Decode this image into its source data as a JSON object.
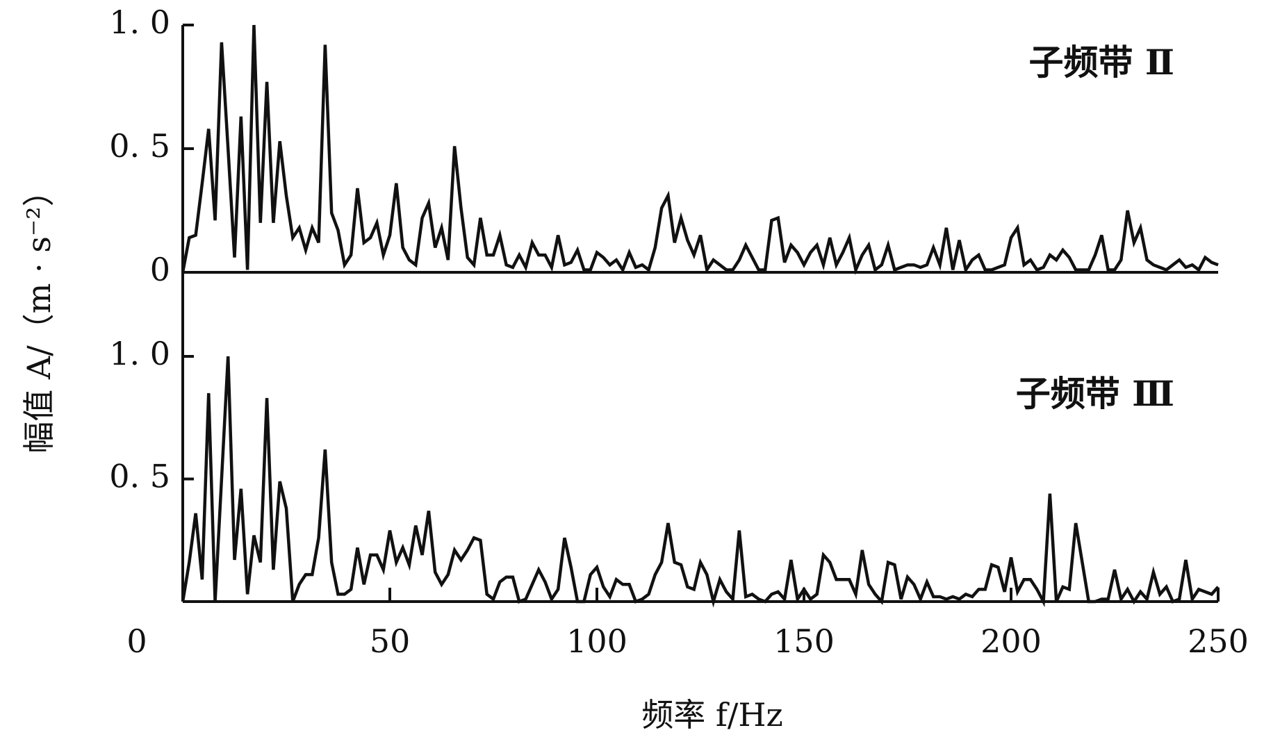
{
  "chart_data": {
    "type": "line",
    "x_label": "频率 f/Hz",
    "y_label": "幅值 A/（m · s⁻²）",
    "xlim": [
      0,
      250
    ],
    "xticks": [
      0,
      50,
      100,
      150,
      200,
      250
    ],
    "x": [
      0,
      1.5625,
      3.125,
      4.6875,
      6.25,
      7.8125,
      9.375,
      10.9375,
      12.5,
      14.0625,
      15.625,
      17.1875,
      18.75,
      20.3125,
      21.875,
      23.4375,
      25,
      26.5625,
      28.125,
      29.6875,
      31.25,
      32.8125,
      34.375,
      35.9375,
      37.5,
      39.0625,
      40.625,
      42.1875,
      43.75,
      45.3125,
      46.875,
      48.4375,
      50,
      51.5625,
      53.125,
      54.6875,
      56.25,
      57.8125,
      59.375,
      60.9375,
      62.5,
      64.0625,
      65.625,
      67.1875,
      68.75,
      70.3125,
      71.875,
      73.4375,
      75,
      76.5625,
      78.125,
      79.6875,
      81.25,
      82.8125,
      84.375,
      85.9375,
      87.5,
      89.0625,
      90.625,
      92.1875,
      93.75,
      95.3125,
      96.875,
      98.4375,
      100,
      101.5625,
      103.125,
      104.6875,
      106.25,
      107.8125,
      109.375,
      110.9375,
      112.5,
      114.0625,
      115.625,
      117.1875,
      118.75,
      120.3125,
      121.875,
      123.4375,
      125,
      126.5625,
      128.125,
      129.6875,
      131.25,
      132.8125,
      134.375,
      135.9375,
      137.5,
      139.0625,
      140.625,
      142.1875,
      143.75,
      145.3125,
      146.875,
      148.4375,
      150,
      151.5625,
      153.125,
      154.6875,
      156.25,
      157.8125,
      159.375,
      160.9375,
      162.5,
      164.0625,
      165.625,
      167.1875,
      168.75,
      170.3125,
      171.875,
      173.4375,
      175,
      176.5625,
      178.125,
      179.6875,
      181.25,
      182.8125,
      184.375,
      185.9375,
      187.5,
      189.0625,
      190.625,
      192.1875,
      193.75,
      195.3125,
      196.875,
      198.4375,
      200,
      201.5625,
      203.125,
      204.6875,
      206.25,
      207.8125,
      209.375,
      210.9375,
      212.5,
      214.0625,
      215.625,
      217.1875,
      218.75,
      220.3125,
      221.875,
      223.4375,
      225,
      226.5625,
      228.125,
      229.6875,
      231.25,
      232.8125,
      234.375,
      235.9375,
      237.5,
      239.0625,
      240.625,
      242.1875,
      243.75,
      245.3125,
      246.875,
      248.4375,
      250
    ],
    "series": [
      {
        "name": "子频带 Ⅱ",
        "color": "#111111",
        "ylim": [
          0,
          1
        ],
        "yticks": [
          0,
          {
            "value": 0.5,
            "label": "0. 5"
          },
          {
            "value": 1,
            "label": "1. 0"
          }
        ],
        "values": [
          0,
          0.14,
          0.15,
          0.36,
          0.58,
          0.21,
          0.93,
          0.5,
          0.06,
          0.63,
          0.01,
          1.0,
          0.2,
          0.77,
          0.2,
          0.53,
          0.31,
          0.14,
          0.18,
          0.09,
          0.18,
          0.12,
          0.92,
          0.24,
          0.17,
          0.03,
          0.07,
          0.34,
          0.12,
          0.14,
          0.2,
          0.07,
          0.15,
          0.36,
          0.1,
          0.05,
          0.03,
          0.22,
          0.28,
          0.1,
          0.18,
          0.05,
          0.51,
          0.26,
          0.06,
          0.03,
          0.22,
          0.07,
          0.07,
          0.15,
          0.03,
          0.02,
          0.07,
          0.02,
          0.12,
          0.07,
          0.07,
          0.02,
          0.15,
          0.03,
          0.04,
          0.09,
          0.01,
          0.01,
          0.08,
          0.06,
          0.03,
          0.05,
          0.01,
          0.08,
          0.02,
          0.03,
          0.01,
          0.1,
          0.26,
          0.31,
          0.12,
          0.22,
          0.13,
          0.07,
          0.15,
          0.01,
          0.05,
          0.03,
          0.01,
          0.01,
          0.05,
          0.11,
          0.06,
          0.01,
          0.01,
          0.21,
          0.22,
          0.04,
          0.11,
          0.08,
          0.03,
          0.08,
          0.11,
          0.03,
          0.14,
          0.03,
          0.08,
          0.14,
          0.01,
          0.07,
          0.11,
          0.01,
          0.03,
          0.11,
          0.01,
          0.02,
          0.03,
          0.03,
          0.02,
          0.03,
          0.1,
          0.03,
          0.18,
          0.01,
          0.13,
          0.01,
          0.05,
          0.07,
          0.01,
          0.01,
          0.02,
          0.03,
          0.14,
          0.18,
          0.03,
          0.05,
          0.01,
          0.02,
          0.07,
          0.05,
          0.09,
          0.06,
          0.01,
          0.01,
          0.01,
          0.07,
          0.15,
          0.01,
          0.01,
          0.05,
          0.25,
          0.12,
          0.18,
          0.05,
          0.03,
          0.02,
          0.01,
          0.03,
          0.05,
          0.02,
          0.03,
          0.01,
          0.06,
          0.04,
          0.03
        ]
      },
      {
        "name": "子频带 Ⅲ",
        "color": "#111111",
        "ylim": [
          0,
          1
        ],
        "yticks": [
          {
            "value": 0.5,
            "label": "0. 5"
          },
          {
            "value": 1,
            "label": "1. 0"
          }
        ],
        "values": [
          0,
          0.16,
          0.36,
          0.09,
          0.85,
          0,
          0.5,
          1.0,
          0.17,
          0.46,
          0.03,
          0.27,
          0.16,
          0.83,
          0.13,
          0.49,
          0.38,
          0,
          0.07,
          0.11,
          0.11,
          0.26,
          0.62,
          0.16,
          0.03,
          0.03,
          0.05,
          0.22,
          0.07,
          0.19,
          0.19,
          0.13,
          0.29,
          0.16,
          0.22,
          0.15,
          0.31,
          0.19,
          0.37,
          0.12,
          0.07,
          0.11,
          0.21,
          0.17,
          0.21,
          0.26,
          0.25,
          0.03,
          0.01,
          0.08,
          0.1,
          0.1,
          0,
          0.01,
          0.07,
          0.13,
          0.08,
          0.01,
          0.05,
          0.26,
          0.14,
          0,
          0,
          0.11,
          0.14,
          0.06,
          0.02,
          0.09,
          0.07,
          0.07,
          0,
          0.01,
          0.03,
          0.11,
          0.16,
          0.32,
          0.16,
          0.15,
          0.06,
          0.05,
          0.16,
          0.11,
          0,
          0.09,
          0.04,
          0.01,
          0.29,
          0.02,
          0.03,
          0.01,
          0,
          0.03,
          0.04,
          0.01,
          0.17,
          0.01,
          0.05,
          0.01,
          0.03,
          0.19,
          0.16,
          0.09,
          0.09,
          0.09,
          0.03,
          0.21,
          0.07,
          0.03,
          0,
          0.16,
          0.15,
          0.01,
          0.1,
          0.07,
          0.01,
          0.08,
          0.02,
          0.02,
          0.01,
          0.02,
          0.01,
          0.03,
          0.02,
          0.05,
          0.05,
          0.15,
          0.14,
          0.04,
          0.18,
          0.04,
          0.09,
          0.09,
          0.05,
          0,
          0.44,
          0,
          0.06,
          0.05,
          0.32,
          0.16,
          0,
          0,
          0.01,
          0.01,
          0.13,
          0.01,
          0.05,
          0,
          0.04,
          0.01,
          0.12,
          0.03,
          0.06,
          0,
          0.01,
          0.17,
          0.01,
          0.05,
          0.04,
          0.03,
          0.06
        ]
      }
    ]
  }
}
